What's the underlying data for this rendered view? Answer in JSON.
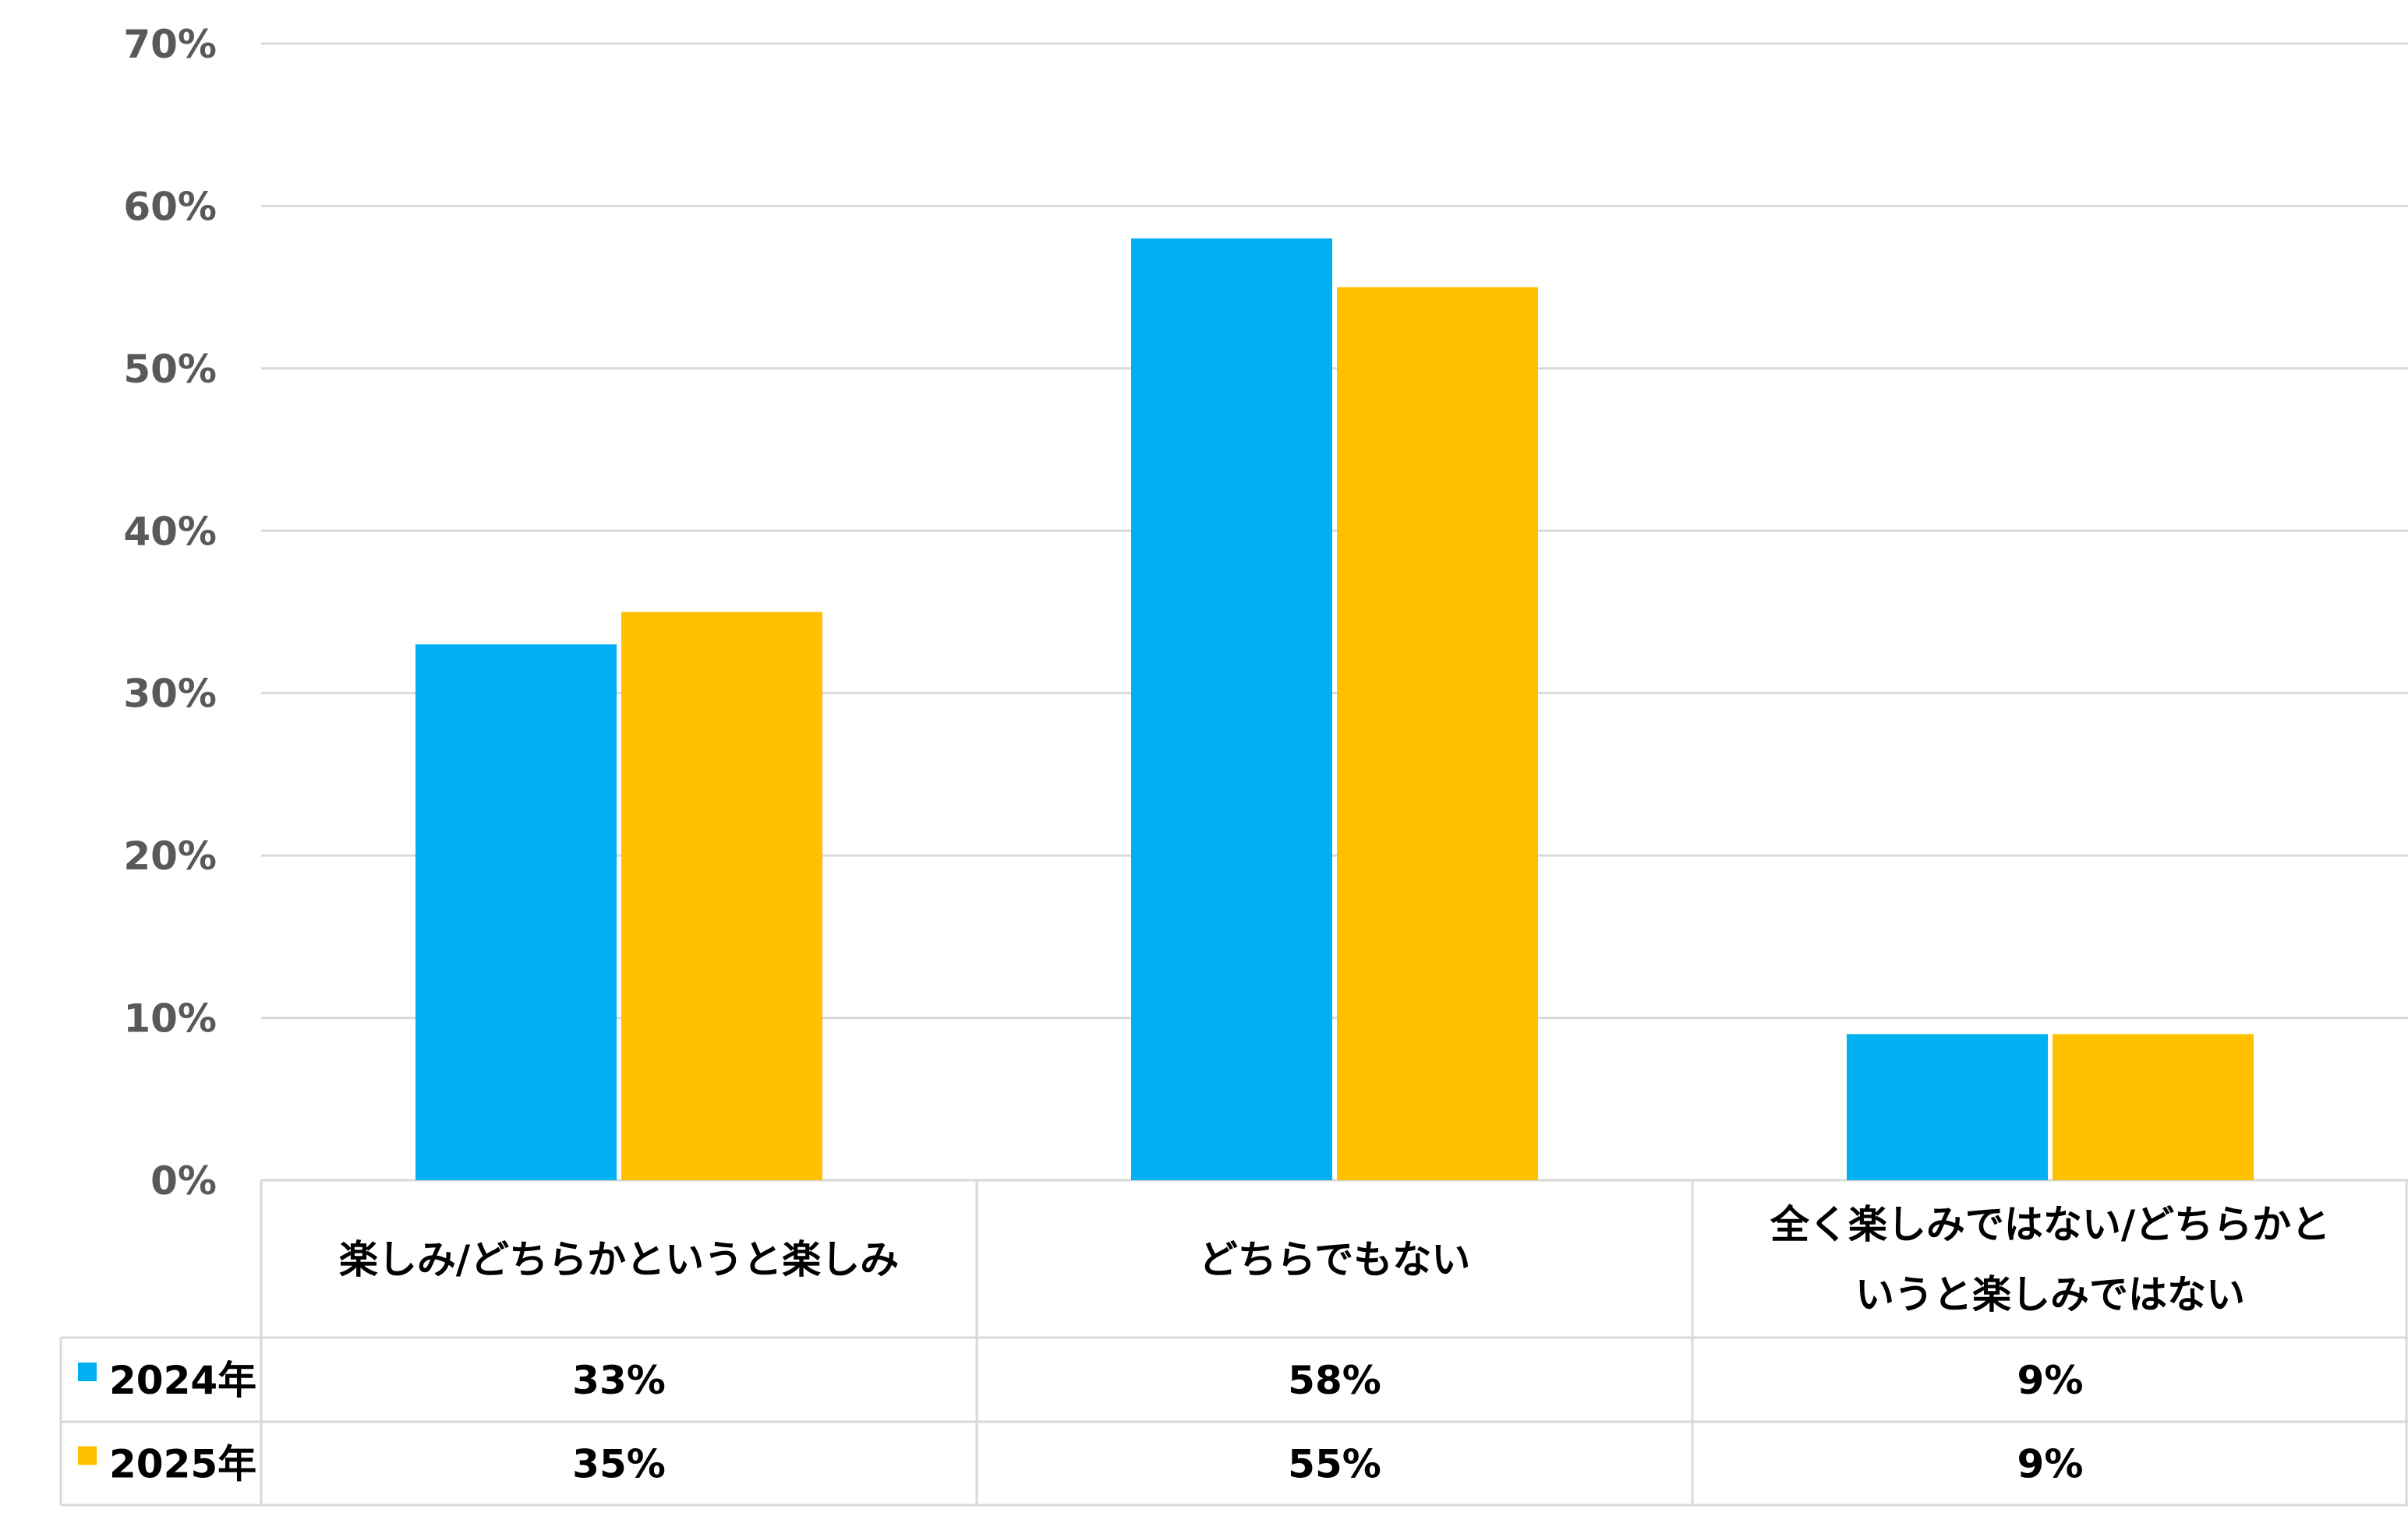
{
  "chart_data": {
    "type": "bar",
    "categories": [
      [
        "楽しみ/どちらかというと楽しみ"
      ],
      [
        "どちらでもない"
      ],
      [
        "全く楽しみではない/どちらかと",
        "いうと楽しみではない"
      ]
    ],
    "series": [
      {
        "name": "2024年",
        "values": [
          33,
          58,
          9
        ],
        "labels": [
          "33%",
          "58%",
          "9%"
        ],
        "color": "#00B0F0"
      },
      {
        "name": "2025年",
        "values": [
          35,
          55,
          9
        ],
        "labels": [
          "35%",
          "55%",
          "9%"
        ],
        "color": "#FFC000"
      }
    ],
    "ylim": [
      0,
      70
    ],
    "yticks": [
      "0%",
      "10%",
      "20%",
      "30%",
      "40%",
      "50%",
      "60%",
      "70%"
    ],
    "grid": true,
    "legend": "data-table"
  }
}
